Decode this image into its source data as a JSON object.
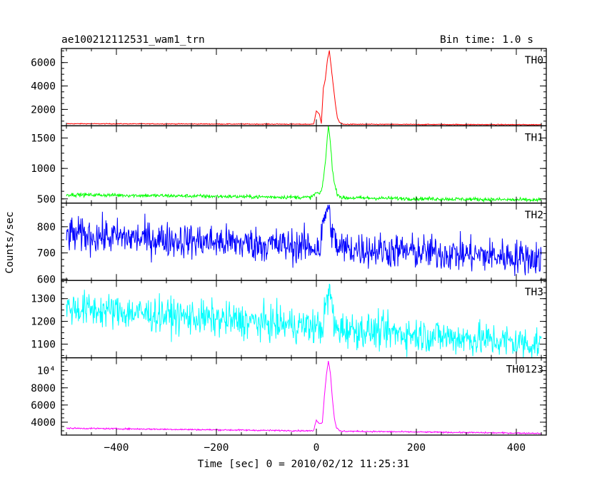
{
  "header": {
    "left_title": "ae100212112531_wam1_trn",
    "right_title": "Bin time: 1.0 s"
  },
  "chart_data": {
    "type": "line",
    "title": "ae100212112531_wam1_trn",
    "subtitle": "Bin time: 1.0 s",
    "xlabel": "Time [sec] 0 = 2010/02/12 11:25:31",
    "ylabel": "Counts/sec",
    "xlim": [
      -510,
      460
    ],
    "xticks": [
      -400,
      -200,
      0,
      200,
      400
    ],
    "xtick_labels": [
      "−400",
      "−200",
      "0",
      "200",
      "400"
    ],
    "x_start": -500,
    "x_end": 450,
    "panels": [
      {
        "name": "TH0",
        "color": "#ff0000",
        "ylim": [
          600,
          7200
        ],
        "yticks": [
          2000,
          4000,
          6000
        ],
        "ytick_labels": [
          "2000",
          "4000",
          "6000"
        ],
        "baseline": [
          [
            -500,
            780
          ],
          [
            450,
            700
          ]
        ],
        "noise": 25,
        "features": [
          [
            -5,
            800
          ],
          [
            0,
            1900
          ],
          [
            6,
            1600
          ],
          [
            10,
            800
          ],
          [
            14,
            3800
          ],
          [
            18,
            4600
          ],
          [
            22,
            6200
          ],
          [
            26,
            7000
          ],
          [
            30,
            5500
          ],
          [
            34,
            4000
          ],
          [
            38,
            2500
          ],
          [
            42,
            1300
          ],
          [
            46,
            900
          ],
          [
            52,
            780
          ]
        ]
      },
      {
        "name": "TH1",
        "color": "#00ff00",
        "ylim": [
          430,
          1700
        ],
        "yticks": [
          500,
          1000,
          1500
        ],
        "ytick_labels": [
          "500",
          "1000",
          "1500"
        ],
        "baseline": [
          [
            -500,
            570
          ],
          [
            450,
            480
          ]
        ],
        "noise": 22,
        "features": [
          [
            -10,
            530
          ],
          [
            0,
            600
          ],
          [
            8,
            580
          ],
          [
            12,
            700
          ],
          [
            18,
            1100
          ],
          [
            24,
            1700
          ],
          [
            28,
            1450
          ],
          [
            32,
            1000
          ],
          [
            36,
            750
          ],
          [
            42,
            580
          ],
          [
            50,
            530
          ]
        ]
      },
      {
        "name": "TH2",
        "color": "#0000ff",
        "ylim": [
          595,
          890
        ],
        "yticks": [
          600,
          700,
          800
        ],
        "ytick_labels": [
          "600",
          "700",
          "800"
        ],
        "baseline": [
          [
            -500,
            770
          ],
          [
            450,
            680
          ]
        ],
        "noise": 48,
        "features": [
          [
            10,
            760
          ],
          [
            16,
            830
          ],
          [
            22,
            880
          ],
          [
            28,
            820
          ],
          [
            34,
            760
          ],
          [
            40,
            740
          ]
        ]
      },
      {
        "name": "TH3",
        "color": "#00ffff",
        "ylim": [
          1040,
          1380
        ],
        "yticks": [
          1100,
          1200,
          1300
        ],
        "ytick_labels": [
          "1100",
          "1200",
          "1300"
        ],
        "baseline": [
          [
            -500,
            1260
          ],
          [
            450,
            1100
          ]
        ],
        "noise": 55,
        "features": [
          [
            14,
            1200
          ],
          [
            22,
            1300
          ],
          [
            28,
            1330
          ],
          [
            34,
            1220
          ]
        ]
      },
      {
        "name": "TH0123",
        "color": "#ff00ff",
        "ylim": [
          2500,
          11500
        ],
        "yticks": [
          4000,
          6000,
          8000,
          10000
        ],
        "ytick_labels": [
          "4000",
          "6000",
          "8000",
          "10⁴"
        ],
        "baseline": [
          [
            -500,
            3300
          ],
          [
            450,
            2700
          ]
        ],
        "noise": 60,
        "features": [
          [
            -5,
            3100
          ],
          [
            0,
            4300
          ],
          [
            6,
            3800
          ],
          [
            12,
            4000
          ],
          [
            16,
            7000
          ],
          [
            20,
            9500
          ],
          [
            24,
            11100
          ],
          [
            28,
            9800
          ],
          [
            32,
            6800
          ],
          [
            36,
            4500
          ],
          [
            40,
            3400
          ],
          [
            46,
            3000
          ],
          [
            52,
            2900
          ]
        ]
      }
    ]
  }
}
